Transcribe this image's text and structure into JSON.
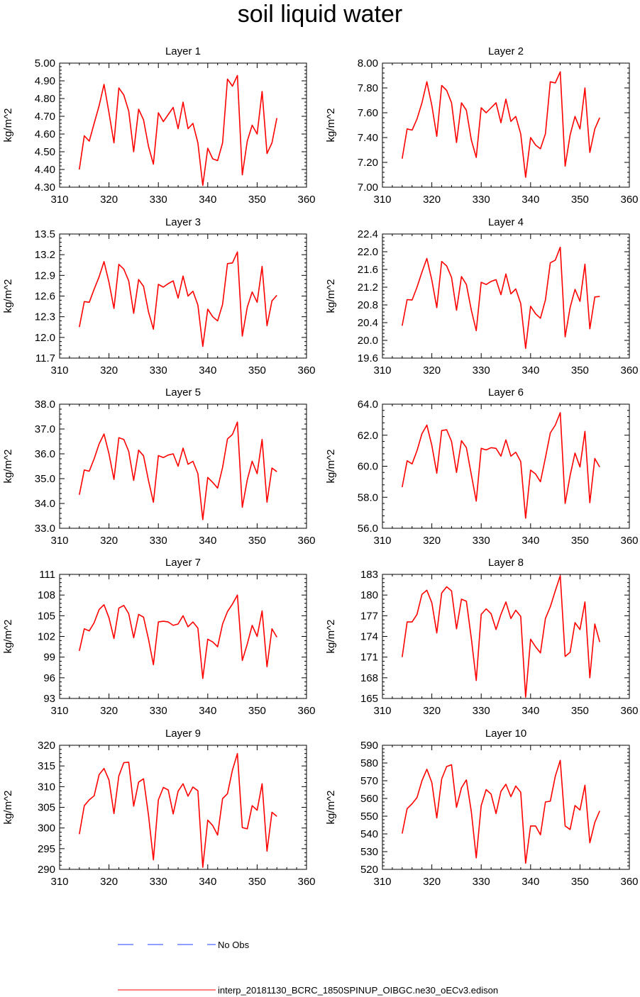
{
  "title": "soil liquid water",
  "legend": [
    {
      "label": "No Obs",
      "color": "#1f3fff",
      "style": "dashed"
    },
    {
      "label": "interp_20181130_BCRC_1850SPINUP_OIBGC.ne30_oECv3.edison",
      "color": "#ff0000",
      "style": "solid"
    }
  ],
  "chart_data": [
    {
      "type": "line",
      "title": "Layer 1",
      "ylabel": "kg/m^2",
      "xlabel": "",
      "xlim": [
        310,
        360
      ],
      "xticks": [
        "310",
        "320",
        "330",
        "340",
        "350",
        "360"
      ],
      "ylim": [
        4.3,
        5.0
      ],
      "yticks": [
        "4.30",
        "4.40",
        "4.50",
        "4.60",
        "4.70",
        "4.80",
        "4.90",
        "5.00"
      ],
      "x": [
        314,
        315,
        316,
        317,
        318,
        319,
        320,
        321,
        322,
        323,
        324,
        325,
        326,
        327,
        328,
        329,
        330,
        331,
        332,
        333,
        334,
        335,
        336,
        337,
        338,
        339,
        340,
        341,
        342,
        343,
        344,
        345,
        346,
        347,
        348,
        349,
        350,
        351,
        352,
        353,
        354
      ],
      "values": [
        4.4,
        4.59,
        4.56,
        4.66,
        4.76,
        4.88,
        4.72,
        4.55,
        4.86,
        4.82,
        4.73,
        4.5,
        4.74,
        4.68,
        4.53,
        4.43,
        4.72,
        4.67,
        4.71,
        4.75,
        4.63,
        4.78,
        4.63,
        4.66,
        4.55,
        4.31,
        4.52,
        4.46,
        4.45,
        4.55,
        4.91,
        4.87,
        4.93,
        4.37,
        4.56,
        4.65,
        4.6,
        4.84,
        4.49,
        4.55,
        4.69
      ]
    },
    {
      "type": "line",
      "title": "Layer 2",
      "ylabel": "kg/m^2",
      "xlabel": "",
      "xlim": [
        310,
        360
      ],
      "xticks": [
        "310",
        "320",
        "330",
        "340",
        "350",
        "360"
      ],
      "ylim": [
        7.0,
        8.0
      ],
      "yticks": [
        "7.00",
        "7.20",
        "7.40",
        "7.60",
        "7.80",
        "8.00"
      ],
      "x": [
        314,
        315,
        316,
        317,
        318,
        319,
        320,
        321,
        322,
        323,
        324,
        325,
        326,
        327,
        328,
        329,
        330,
        331,
        332,
        333,
        334,
        335,
        336,
        337,
        338,
        339,
        340,
        341,
        342,
        343,
        344,
        345,
        346,
        347,
        348,
        349,
        350,
        351,
        352,
        353,
        354
      ],
      "values": [
        7.23,
        7.47,
        7.46,
        7.55,
        7.68,
        7.85,
        7.66,
        7.41,
        7.82,
        7.78,
        7.68,
        7.36,
        7.68,
        7.62,
        7.38,
        7.24,
        7.64,
        7.6,
        7.64,
        7.68,
        7.52,
        7.71,
        7.53,
        7.57,
        7.43,
        7.08,
        7.4,
        7.34,
        7.31,
        7.43,
        7.85,
        7.84,
        7.93,
        7.17,
        7.42,
        7.57,
        7.47,
        7.8,
        7.28,
        7.47,
        7.56
      ]
    },
    {
      "type": "line",
      "title": "Layer 3",
      "ylabel": "kg/m^2",
      "xlabel": "",
      "xlim": [
        310,
        360
      ],
      "xticks": [
        "310",
        "320",
        "330",
        "340",
        "350",
        "360"
      ],
      "ylim": [
        11.7,
        13.5
      ],
      "yticks": [
        "11.7",
        "12.0",
        "12.3",
        "12.6",
        "12.9",
        "13.2",
        "13.5"
      ],
      "x": [
        314,
        315,
        316,
        317,
        318,
        319,
        320,
        321,
        322,
        323,
        324,
        325,
        326,
        327,
        328,
        329,
        330,
        331,
        332,
        333,
        334,
        335,
        336,
        337,
        338,
        339,
        340,
        341,
        342,
        343,
        344,
        345,
        346,
        347,
        348,
        349,
        350,
        351,
        352,
        353,
        354
      ],
      "values": [
        12.15,
        12.52,
        12.51,
        12.7,
        12.88,
        13.1,
        12.8,
        12.42,
        13.06,
        12.99,
        12.82,
        12.35,
        12.84,
        12.74,
        12.37,
        12.12,
        12.77,
        12.73,
        12.78,
        12.82,
        12.57,
        12.89,
        12.6,
        12.67,
        12.47,
        11.87,
        12.41,
        12.3,
        12.24,
        12.48,
        13.07,
        13.08,
        13.24,
        12.02,
        12.44,
        12.66,
        12.51,
        13.03,
        12.17,
        12.53,
        12.61
      ]
    },
    {
      "type": "line",
      "title": "Layer 4",
      "ylabel": "kg/m^2",
      "xlabel": "",
      "xlim": [
        310,
        360
      ],
      "xticks": [
        "310",
        "320",
        "330",
        "340",
        "350",
        "360"
      ],
      "ylim": [
        19.6,
        22.4
      ],
      "yticks": [
        "19.6",
        "20.0",
        "20.4",
        "20.8",
        "21.2",
        "21.6",
        "22.0",
        "22.4"
      ],
      "x": [
        314,
        315,
        316,
        317,
        318,
        319,
        320,
        321,
        322,
        323,
        324,
        325,
        326,
        327,
        328,
        329,
        330,
        331,
        332,
        333,
        334,
        335,
        336,
        337,
        338,
        339,
        340,
        341,
        342,
        343,
        344,
        345,
        346,
        347,
        348,
        349,
        350,
        351,
        352,
        353,
        354
      ],
      "values": [
        20.33,
        20.92,
        20.91,
        21.2,
        21.54,
        21.85,
        21.36,
        20.74,
        21.78,
        21.68,
        21.42,
        20.68,
        21.44,
        21.26,
        20.68,
        20.22,
        21.31,
        21.26,
        21.33,
        21.37,
        21.03,
        21.5,
        21.05,
        21.16,
        20.83,
        19.82,
        20.77,
        20.6,
        20.5,
        20.91,
        21.75,
        21.81,
        22.1,
        20.08,
        20.74,
        21.15,
        20.88,
        21.72,
        20.26,
        20.98,
        20.99
      ]
    },
    {
      "type": "line",
      "title": "Layer 5",
      "ylabel": "kg/m^2",
      "xlabel": "",
      "xlim": [
        310,
        360
      ],
      "xticks": [
        "310",
        "320",
        "330",
        "340",
        "350",
        "360"
      ],
      "ylim": [
        33.0,
        38.0
      ],
      "yticks": [
        "33.0",
        "34.0",
        "35.0",
        "36.0",
        "37.0",
        "38.0"
      ],
      "x": [
        314,
        315,
        316,
        317,
        318,
        319,
        320,
        321,
        322,
        323,
        324,
        325,
        326,
        327,
        328,
        329,
        330,
        331,
        332,
        333,
        334,
        335,
        336,
        337,
        338,
        339,
        340,
        341,
        342,
        343,
        344,
        345,
        346,
        347,
        348,
        349,
        350,
        351,
        352,
        353,
        354
      ],
      "values": [
        34.35,
        35.35,
        35.3,
        35.8,
        36.4,
        36.8,
        36.0,
        34.97,
        36.65,
        36.58,
        36.1,
        34.93,
        36.15,
        35.92,
        34.92,
        34.05,
        35.93,
        35.85,
        35.95,
        36.0,
        35.5,
        36.23,
        35.58,
        35.7,
        35.2,
        33.35,
        35.05,
        34.85,
        34.62,
        35.45,
        36.6,
        36.78,
        37.28,
        33.85,
        34.95,
        35.7,
        35.2,
        36.58,
        34.05,
        35.43,
        35.28
      ]
    },
    {
      "type": "line",
      "title": "Layer 6",
      "ylabel": "kg/m^2",
      "xlabel": "",
      "xlim": [
        310,
        360
      ],
      "xticks": [
        "310",
        "320",
        "330",
        "340",
        "350",
        "360"
      ],
      "ylim": [
        56.0,
        64.0
      ],
      "yticks": [
        "56.0",
        "58.0",
        "60.0",
        "62.0",
        "64.0"
      ],
      "x": [
        314,
        315,
        316,
        317,
        318,
        319,
        320,
        321,
        322,
        323,
        324,
        325,
        326,
        327,
        328,
        329,
        330,
        331,
        332,
        333,
        334,
        335,
        336,
        337,
        338,
        339,
        340,
        341,
        342,
        343,
        344,
        345,
        346,
        347,
        348,
        349,
        350,
        351,
        352,
        353,
        354
      ],
      "values": [
        58.65,
        60.35,
        60.15,
        61.0,
        62.1,
        62.65,
        61.35,
        59.55,
        62.3,
        62.35,
        61.6,
        59.6,
        61.65,
        61.2,
        59.45,
        57.75,
        61.15,
        61.05,
        61.2,
        61.15,
        60.65,
        61.7,
        60.65,
        60.9,
        60.3,
        56.65,
        59.75,
        59.5,
        59.0,
        60.55,
        62.15,
        62.65,
        63.45,
        57.6,
        59.4,
        60.85,
        59.95,
        62.25,
        57.65,
        60.5,
        59.95
      ]
    },
    {
      "type": "line",
      "title": "Layer 7",
      "ylabel": "kg/m^2",
      "xlabel": "",
      "xlim": [
        310,
        360
      ],
      "xticks": [
        "310",
        "320",
        "330",
        "340",
        "350",
        "360"
      ],
      "ylim": [
        93,
        111
      ],
      "yticks": [
        "93",
        "96",
        "99",
        "102",
        "105",
        "108",
        "111"
      ],
      "x": [
        314,
        315,
        316,
        317,
        318,
        319,
        320,
        321,
        322,
        323,
        324,
        325,
        326,
        327,
        328,
        329,
        330,
        331,
        332,
        333,
        334,
        335,
        336,
        337,
        338,
        339,
        340,
        341,
        342,
        343,
        344,
        345,
        346,
        347,
        348,
        349,
        350,
        351,
        352,
        353,
        354
      ],
      "values": [
        99.9,
        103.1,
        102.8,
        104.0,
        105.9,
        106.6,
        104.7,
        101.7,
        106.1,
        106.5,
        105.3,
        101.8,
        105.2,
        104.8,
        101.6,
        97.9,
        104.1,
        104.2,
        104.1,
        103.6,
        103.8,
        105.0,
        103.4,
        104.1,
        103.2,
        95.9,
        101.6,
        101.2,
        100.5,
        103.8,
        105.6,
        106.7,
        108.0,
        98.5,
        100.9,
        103.6,
        102.0,
        105.7,
        97.6,
        103.1,
        101.9
      ]
    },
    {
      "type": "line",
      "title": "Layer 8",
      "ylabel": "kg/m^2",
      "xlabel": "",
      "xlim": [
        310,
        360
      ],
      "xticks": [
        "310",
        "320",
        "330",
        "340",
        "350",
        "360"
      ],
      "ylim": [
        165,
        183
      ],
      "yticks": [
        "165",
        "168",
        "171",
        "174",
        "177",
        "180",
        "183"
      ],
      "x": [
        314,
        315,
        316,
        317,
        318,
        319,
        320,
        321,
        322,
        323,
        324,
        325,
        326,
        327,
        328,
        329,
        330,
        331,
        332,
        333,
        334,
        335,
        336,
        337,
        338,
        339,
        340,
        341,
        342,
        343,
        344,
        345,
        346,
        347,
        348,
        349,
        350,
        351,
        352,
        353,
        354
      ],
      "values": [
        171.0,
        176.1,
        176.1,
        177.2,
        180.1,
        180.7,
        178.9,
        174.5,
        180.3,
        181.2,
        180.6,
        175.1,
        179.4,
        179.1,
        173.7,
        167.6,
        177.2,
        178.0,
        177.3,
        175.0,
        177.2,
        179.0,
        176.6,
        177.8,
        176.9,
        165.2,
        173.6,
        172.5,
        171.6,
        176.6,
        178.3,
        180.6,
        182.8,
        171.1,
        171.7,
        176.0,
        175.0,
        179.0,
        168.0,
        175.8,
        173.2
      ]
    },
    {
      "type": "line",
      "title": "Layer 9",
      "ylabel": "kg/m^2",
      "xlabel": "",
      "xlim": [
        310,
        360
      ],
      "xticks": [
        "310",
        "320",
        "330",
        "340",
        "350",
        "360"
      ],
      "ylim": [
        290,
        320
      ],
      "yticks": [
        "290",
        "295",
        "300",
        "305",
        "310",
        "315",
        "320"
      ],
      "x": [
        314,
        315,
        316,
        317,
        318,
        319,
        320,
        321,
        322,
        323,
        324,
        325,
        326,
        327,
        328,
        329,
        330,
        331,
        332,
        333,
        334,
        335,
        336,
        337,
        338,
        339,
        340,
        341,
        342,
        343,
        344,
        345,
        346,
        347,
        348,
        349,
        350,
        351,
        352,
        353,
        354
      ],
      "values": [
        298.5,
        305.4,
        306.8,
        307.8,
        312.9,
        314.4,
        311.6,
        303.5,
        312.6,
        315.8,
        315.9,
        305.3,
        311.1,
        311.9,
        303.1,
        292.3,
        306.8,
        309.8,
        309.2,
        303.4,
        308.9,
        310.7,
        307.7,
        309.9,
        309.0,
        290.5,
        301.9,
        300.6,
        298.3,
        307.1,
        308.3,
        314.0,
        318.0,
        300.1,
        299.8,
        305.4,
        304.3,
        310.7,
        294.4,
        303.8,
        302.8
      ]
    },
    {
      "type": "line",
      "title": "Layer 10",
      "ylabel": "kg/m^2",
      "xlabel": "",
      "xlim": [
        310,
        360
      ],
      "xticks": [
        "310",
        "320",
        "330",
        "340",
        "350",
        "360"
      ],
      "ylim": [
        520,
        590
      ],
      "yticks": [
        "520",
        "530",
        "540",
        "550",
        "560",
        "570",
        "580",
        "590"
      ],
      "x": [
        314,
        315,
        316,
        317,
        318,
        319,
        320,
        321,
        322,
        323,
        324,
        325,
        326,
        327,
        328,
        329,
        330,
        331,
        332,
        333,
        334,
        335,
        336,
        337,
        338,
        339,
        340,
        341,
        342,
        343,
        344,
        345,
        346,
        347,
        348,
        349,
        350,
        351,
        352,
        353,
        354
      ],
      "values": [
        540.2,
        554.3,
        557.0,
        560.5,
        570.0,
        576.5,
        569.0,
        549.0,
        571.0,
        578.0,
        579.0,
        555.0,
        566.0,
        570.5,
        552.5,
        526.5,
        556.0,
        565.0,
        562.5,
        551.5,
        564.0,
        568.0,
        561.0,
        567.0,
        563.5,
        523.5,
        544.5,
        544.5,
        539.5,
        558.0,
        558.5,
        572.5,
        581.5,
        544.5,
        542.5,
        556.0,
        553.5,
        567.5,
        535.0,
        546.5,
        553.0
      ]
    }
  ]
}
